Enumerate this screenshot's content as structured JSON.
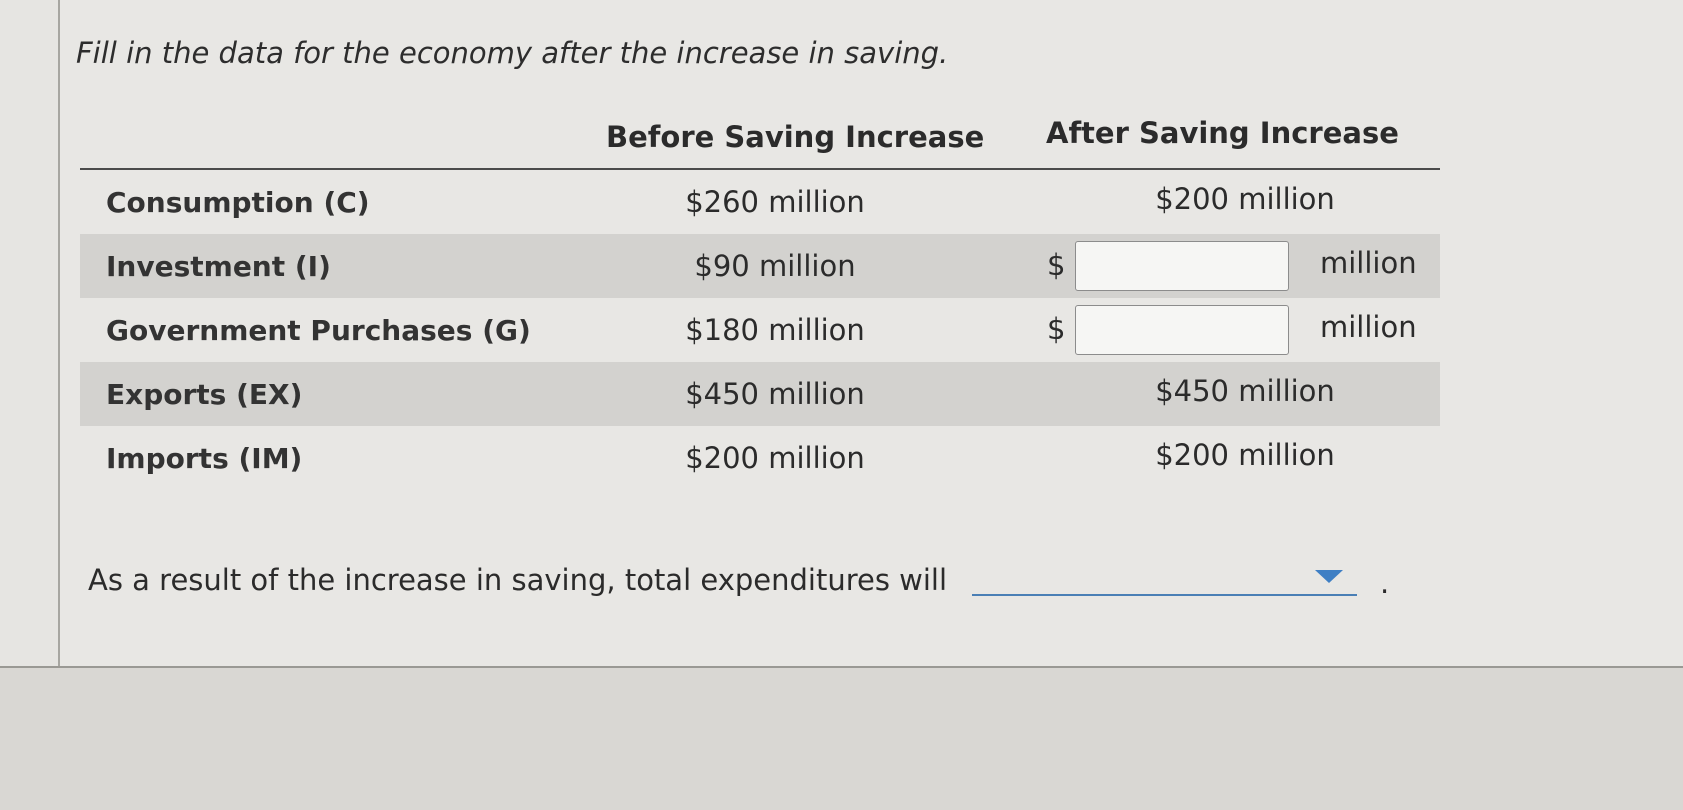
{
  "prompt": "Fill in the data for the economy after the increase in saving.",
  "table": {
    "headers": {
      "before": "Before Saving Increase",
      "after": "After Saving Increase"
    },
    "rows": [
      {
        "label": "Consumption (C)",
        "before": "$260 million",
        "after": "$200 million"
      },
      {
        "label": "Investment (I)",
        "before": "$90 million",
        "dollar": "$",
        "input_value": "",
        "unit": "million"
      },
      {
        "label": "Government Purchases (G)",
        "before": "$180 million",
        "dollar": "$",
        "input_value": "",
        "unit": "million"
      },
      {
        "label": "Exports (EX)",
        "before": "$450 million",
        "after": "$450 million"
      },
      {
        "label": "Imports (IM)",
        "before": "$200 million",
        "after": "$200 million"
      }
    ]
  },
  "question": {
    "sentence": "As a result of the increase in saving, total expenditures will",
    "dropdown_selected": "",
    "dropdown_icon": "chevron-down-icon",
    "period": "."
  },
  "colors": {
    "shaded_row": "#d3d2cf",
    "dropdown_accent": "#3f7fc4"
  }
}
